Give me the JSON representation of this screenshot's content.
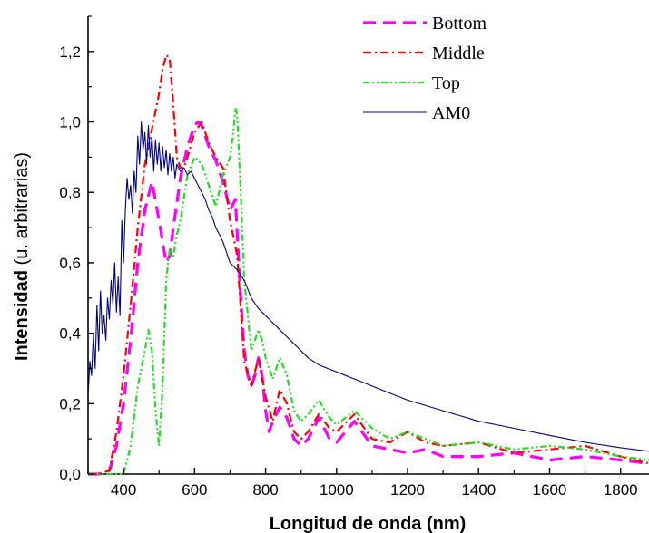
{
  "chart_data": {
    "type": "line",
    "xlabel": "Longitud de onda (nm)",
    "ylabel_bold": "Intensidad",
    "ylabel_rest": " (u. arbitrarias)",
    "xlim": [
      300,
      1880
    ],
    "ylim": [
      0,
      1.3
    ],
    "x_ticks": [
      400,
      600,
      800,
      1000,
      1200,
      1400,
      1600,
      1800
    ],
    "x_tick_labels": [
      "400",
      "600",
      "800",
      "1000",
      "1200",
      "1400",
      "1600",
      "1800"
    ],
    "y_ticks": [
      0,
      0.2,
      0.4,
      0.6,
      0.8,
      1.0,
      1.2
    ],
    "y_tick_labels": [
      "0,0",
      "0,2",
      "0,4",
      "0,6",
      "0,8",
      "1,0",
      "1,2"
    ],
    "grid": false,
    "legend_position": "top-right",
    "series": [
      {
        "name": "Bottom",
        "color": "#ff00ff",
        "dash": "dash",
        "x": [
          300,
          330,
          360,
          380,
          400,
          420,
          440,
          460,
          480,
          500,
          510,
          520,
          530,
          540,
          560,
          580,
          600,
          610,
          620,
          640,
          660,
          680,
          700,
          715,
          730,
          740,
          750,
          760,
          770,
          780,
          790,
          800,
          810,
          820,
          840,
          860,
          880,
          900,
          920,
          950,
          980,
          1000,
          1050,
          1100,
          1150,
          1200,
          1250,
          1300,
          1400,
          1500,
          1600,
          1700,
          1800,
          1880
        ],
        "y": [
          0,
          0,
          0.01,
          0.08,
          0.2,
          0.38,
          0.6,
          0.75,
          0.83,
          0.72,
          0.66,
          0.6,
          0.62,
          0.7,
          0.84,
          0.93,
          0.99,
          1.0,
          0.99,
          0.93,
          0.89,
          0.83,
          0.75,
          0.78,
          0.5,
          0.35,
          0.28,
          0.25,
          0.28,
          0.33,
          0.28,
          0.18,
          0.12,
          0.15,
          0.19,
          0.16,
          0.1,
          0.08,
          0.1,
          0.16,
          0.1,
          0.09,
          0.15,
          0.08,
          0.07,
          0.06,
          0.07,
          0.05,
          0.05,
          0.06,
          0.04,
          0.05,
          0.04,
          0.03
        ]
      },
      {
        "name": "Middle",
        "color": "#ff0000",
        "dash": "dashdot",
        "x": [
          300,
          330,
          360,
          380,
          400,
          420,
          440,
          460,
          480,
          500,
          510,
          520,
          530,
          540,
          550,
          560,
          570,
          580,
          600,
          620,
          640,
          660,
          680,
          700,
          720,
          740,
          760,
          780,
          800,
          820,
          840,
          860,
          880,
          900,
          920,
          950,
          980,
          1000,
          1050,
          1100,
          1150,
          1200,
          1250,
          1300,
          1400,
          1500,
          1600,
          1700,
          1800,
          1880
        ],
        "y": [
          0,
          0,
          0.01,
          0.12,
          0.28,
          0.48,
          0.7,
          0.88,
          0.98,
          1.08,
          1.15,
          1.19,
          1.18,
          1.05,
          0.9,
          0.87,
          0.87,
          0.9,
          0.97,
          1.0,
          0.94,
          0.9,
          0.87,
          0.72,
          0.62,
          0.32,
          0.25,
          0.33,
          0.22,
          0.15,
          0.24,
          0.2,
          0.12,
          0.1,
          0.12,
          0.17,
          0.13,
          0.12,
          0.17,
          0.1,
          0.09,
          0.12,
          0.09,
          0.08,
          0.09,
          0.06,
          0.07,
          0.08,
          0.05,
          0.03
        ]
      },
      {
        "name": "Top",
        "color": "#22dd22",
        "dash": "dashdotdot",
        "x": [
          300,
          360,
          400,
          420,
          440,
          460,
          470,
          480,
          490,
          500,
          510,
          520,
          530,
          540,
          550,
          560,
          580,
          600,
          620,
          640,
          660,
          680,
          700,
          710,
          715,
          720,
          730,
          740,
          760,
          780,
          790,
          800,
          820,
          840,
          860,
          880,
          900,
          920,
          950,
          980,
          1000,
          1050,
          1100,
          1150,
          1200,
          1250,
          1300,
          1400,
          1500,
          1600,
          1700,
          1800,
          1880
        ],
        "y": [
          0,
          0,
          0,
          0.08,
          0.25,
          0.35,
          0.41,
          0.35,
          0.18,
          0.08,
          0.25,
          0.55,
          0.64,
          0.62,
          0.68,
          0.72,
          0.85,
          0.9,
          0.88,
          0.82,
          0.76,
          0.85,
          0.9,
          0.98,
          1.04,
          1.02,
          0.8,
          0.55,
          0.35,
          0.41,
          0.38,
          0.33,
          0.27,
          0.33,
          0.28,
          0.18,
          0.15,
          0.17,
          0.21,
          0.16,
          0.14,
          0.18,
          0.13,
          0.1,
          0.12,
          0.1,
          0.08,
          0.09,
          0.07,
          0.08,
          0.07,
          0.05,
          0.04
        ]
      },
      {
        "name": "AM0",
        "color": "#000080",
        "dash": "solid",
        "x": [
          300,
          305,
          310,
          315,
          320,
          325,
          330,
          335,
          340,
          345,
          350,
          355,
          360,
          365,
          370,
          375,
          380,
          385,
          390,
          395,
          400,
          405,
          410,
          415,
          420,
          425,
          430,
          435,
          440,
          445,
          450,
          455,
          460,
          465,
          470,
          475,
          480,
          485,
          490,
          495,
          500,
          505,
          510,
          515,
          520,
          525,
          530,
          535,
          540,
          545,
          550,
          560,
          570,
          580,
          590,
          600,
          610,
          620,
          630,
          640,
          650,
          660,
          670,
          680,
          690,
          700,
          720,
          740,
          760,
          780,
          800,
          820,
          840,
          860,
          880,
          900,
          920,
          950,
          1000,
          1050,
          1100,
          1150,
          1200,
          1300,
          1400,
          1500,
          1600,
          1700,
          1800,
          1880
        ],
        "y": [
          0.22,
          0.32,
          0.28,
          0.4,
          0.3,
          0.48,
          0.35,
          0.52,
          0.4,
          0.45,
          0.38,
          0.5,
          0.44,
          0.55,
          0.48,
          0.6,
          0.46,
          0.56,
          0.45,
          0.72,
          0.6,
          0.75,
          0.84,
          0.78,
          0.82,
          0.74,
          0.86,
          0.8,
          0.96,
          0.88,
          1.0,
          0.92,
          0.97,
          0.88,
          0.99,
          0.9,
          0.96,
          0.86,
          0.95,
          0.88,
          0.94,
          0.86,
          0.93,
          0.87,
          0.92,
          0.85,
          0.91,
          0.86,
          0.9,
          0.84,
          0.88,
          0.86,
          0.87,
          0.85,
          0.86,
          0.84,
          0.82,
          0.8,
          0.78,
          0.75,
          0.73,
          0.7,
          0.68,
          0.66,
          0.63,
          0.6,
          0.58,
          0.55,
          0.5,
          0.47,
          0.45,
          0.43,
          0.41,
          0.39,
          0.37,
          0.35,
          0.33,
          0.31,
          0.29,
          0.27,
          0.25,
          0.23,
          0.21,
          0.18,
          0.15,
          0.13,
          0.11,
          0.09,
          0.075,
          0.065
        ]
      }
    ]
  }
}
